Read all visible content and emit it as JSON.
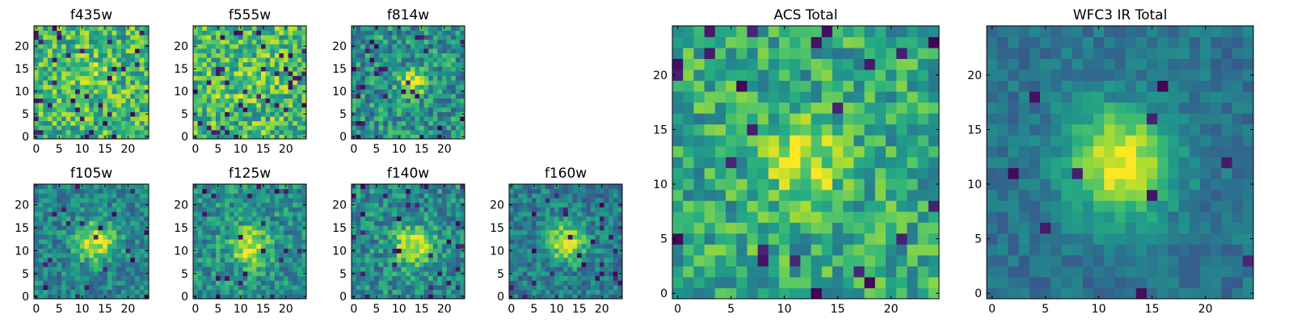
{
  "figure": {
    "background": "#ffffff"
  },
  "colormap": [
    "#440154",
    "#472d7b",
    "#3b528b",
    "#2c728e",
    "#21918c",
    "#28ae80",
    "#5ec962",
    "#addc30",
    "#fde725"
  ],
  "chart_data": [
    {
      "id": "f435w",
      "type": "heatmap",
      "title": "f435w",
      "grid": [
        25,
        25
      ],
      "xlim": [
        -0.5,
        24.5
      ],
      "ylim": [
        -0.5,
        24.5
      ],
      "xticks": [
        0,
        5,
        10,
        15,
        20
      ],
      "xtick_labels": [
        "0",
        "5",
        "10",
        "15",
        "20"
      ],
      "yticks": [
        0,
        5,
        10,
        15,
        20
      ],
      "ytick_labels": [
        "0",
        "5",
        "10",
        "15",
        "20"
      ],
      "pattern": {
        "base": 0.66,
        "noise": 0.26,
        "peak": 0.12,
        "center": [
          13,
          14
        ],
        "sigma": 3,
        "dark": 0.05,
        "seed": 11
      }
    },
    {
      "id": "f555w",
      "type": "heatmap",
      "title": "f555w",
      "grid": [
        25,
        25
      ],
      "xlim": [
        -0.5,
        24.5
      ],
      "ylim": [
        -0.5,
        24.5
      ],
      "xticks": [
        0,
        5,
        10,
        15,
        20
      ],
      "xtick_labels": [
        "0",
        "5",
        "10",
        "15",
        "20"
      ],
      "yticks": [
        0,
        5,
        10,
        15,
        20
      ],
      "ytick_labels": [
        "0",
        "5",
        "10",
        "15",
        "20"
      ],
      "pattern": {
        "base": 0.68,
        "noise": 0.26,
        "peak": 0.1,
        "center": [
          11,
          12
        ],
        "sigma": 3,
        "dark": 0.05,
        "seed": 23
      }
    },
    {
      "id": "f814w",
      "type": "heatmap",
      "title": "f814w",
      "grid": [
        25,
        25
      ],
      "xlim": [
        -0.5,
        24.5
      ],
      "ylim": [
        -0.5,
        24.5
      ],
      "xticks": [
        0,
        5,
        10,
        15,
        20
      ],
      "xtick_labels": [
        "0",
        "5",
        "10",
        "15",
        "20"
      ],
      "yticks": [
        0,
        5,
        10,
        15,
        20
      ],
      "ytick_labels": [
        "0",
        "5",
        "10",
        "15",
        "20"
      ],
      "pattern": {
        "base": 0.5,
        "noise": 0.24,
        "peak": 0.45,
        "center": [
          13,
          12
        ],
        "sigma": 2,
        "dark": 0.05,
        "seed": 37
      }
    },
    {
      "id": "f105w",
      "type": "heatmap",
      "title": "f105w",
      "grid": [
        25,
        25
      ],
      "xlim": [
        -0.5,
        24.5
      ],
      "ylim": [
        -0.5,
        24.5
      ],
      "xticks": [
        0,
        5,
        10,
        15,
        20
      ],
      "xtick_labels": [
        "0",
        "5",
        "10",
        "15",
        "20"
      ],
      "yticks": [
        0,
        5,
        10,
        15,
        20
      ],
      "ytick_labels": [
        "0",
        "5",
        "10",
        "15",
        "20"
      ],
      "pattern": {
        "base": 0.45,
        "noise": 0.18,
        "peak": 0.5,
        "center": [
          13,
          12
        ],
        "sigma": 3,
        "dark": 0.04,
        "seed": 41
      }
    },
    {
      "id": "f125w",
      "type": "heatmap",
      "title": "f125w",
      "grid": [
        25,
        25
      ],
      "xlim": [
        -0.5,
        24.5
      ],
      "ylim": [
        -0.5,
        24.5
      ],
      "xticks": [
        0,
        5,
        10,
        15,
        20
      ],
      "xtick_labels": [
        "0",
        "5",
        "10",
        "15",
        "20"
      ],
      "yticks": [
        0,
        5,
        10,
        15,
        20
      ],
      "ytick_labels": [
        "0",
        "5",
        "10",
        "15",
        "20"
      ],
      "pattern": {
        "base": 0.5,
        "noise": 0.2,
        "peak": 0.45,
        "center": [
          12,
          11
        ],
        "sigma": 3,
        "dark": 0.04,
        "seed": 53
      }
    },
    {
      "id": "f140w",
      "type": "heatmap",
      "title": "f140w",
      "grid": [
        25,
        25
      ],
      "xlim": [
        -0.5,
        24.5
      ],
      "ylim": [
        -0.5,
        24.5
      ],
      "xticks": [
        0,
        5,
        10,
        15,
        20
      ],
      "xtick_labels": [
        "0",
        "5",
        "10",
        "15",
        "20"
      ],
      "yticks": [
        0,
        5,
        10,
        15,
        20
      ],
      "ytick_labels": [
        "0",
        "5",
        "10",
        "15",
        "20"
      ],
      "pattern": {
        "base": 0.48,
        "noise": 0.2,
        "peak": 0.48,
        "center": [
          13,
          11
        ],
        "sigma": 3,
        "dark": 0.04,
        "seed": 67
      }
    },
    {
      "id": "f160w",
      "type": "heatmap",
      "title": "f160w",
      "grid": [
        25,
        25
      ],
      "xlim": [
        -0.5,
        24.5
      ],
      "ylim": [
        -0.5,
        24.5
      ],
      "xticks": [
        0,
        5,
        10,
        15,
        20
      ],
      "xtick_labels": [
        "0",
        "5",
        "10",
        "15",
        "20"
      ],
      "yticks": [
        0,
        5,
        10,
        15,
        20
      ],
      "ytick_labels": [
        "0",
        "5",
        "10",
        "15",
        "20"
      ],
      "pattern": {
        "base": 0.42,
        "noise": 0.18,
        "peak": 0.5,
        "center": [
          12,
          12
        ],
        "sigma": 3,
        "dark": 0.04,
        "seed": 79
      }
    },
    {
      "id": "acs-total",
      "type": "heatmap",
      "title": "ACS Total",
      "grid": [
        25,
        25
      ],
      "xlim": [
        -0.5,
        24.5
      ],
      "ylim": [
        -0.5,
        24.5
      ],
      "xticks": [
        0,
        5,
        10,
        15,
        20
      ],
      "xtick_labels": [
        "0",
        "5",
        "10",
        "15",
        "20"
      ],
      "yticks": [
        0,
        5,
        10,
        15,
        20
      ],
      "ytick_labels": [
        "0",
        "5",
        "10",
        "15",
        "20"
      ],
      "pattern": {
        "base": 0.6,
        "noise": 0.22,
        "peak": 0.35,
        "center": [
          12,
          12
        ],
        "sigma": 2.5,
        "dark": 0.04,
        "seed": 97
      }
    },
    {
      "id": "wfc3-ir-total",
      "type": "heatmap",
      "title": "WFC3 IR Total",
      "grid": [
        25,
        25
      ],
      "xlim": [
        -0.5,
        24.5
      ],
      "ylim": [
        -0.5,
        24.5
      ],
      "xticks": [
        0,
        5,
        10,
        15,
        20
      ],
      "xtick_labels": [
        "0",
        "5",
        "10",
        "15",
        "20"
      ],
      "yticks": [
        0,
        5,
        10,
        15,
        20
      ],
      "ytick_labels": [
        "0",
        "5",
        "10",
        "15",
        "20"
      ],
      "pattern": {
        "base": 0.38,
        "noise": 0.1,
        "peak": 0.6,
        "center": [
          12,
          12
        ],
        "sigma": 3.5,
        "dark": 0.02,
        "seed": 131
      }
    }
  ]
}
